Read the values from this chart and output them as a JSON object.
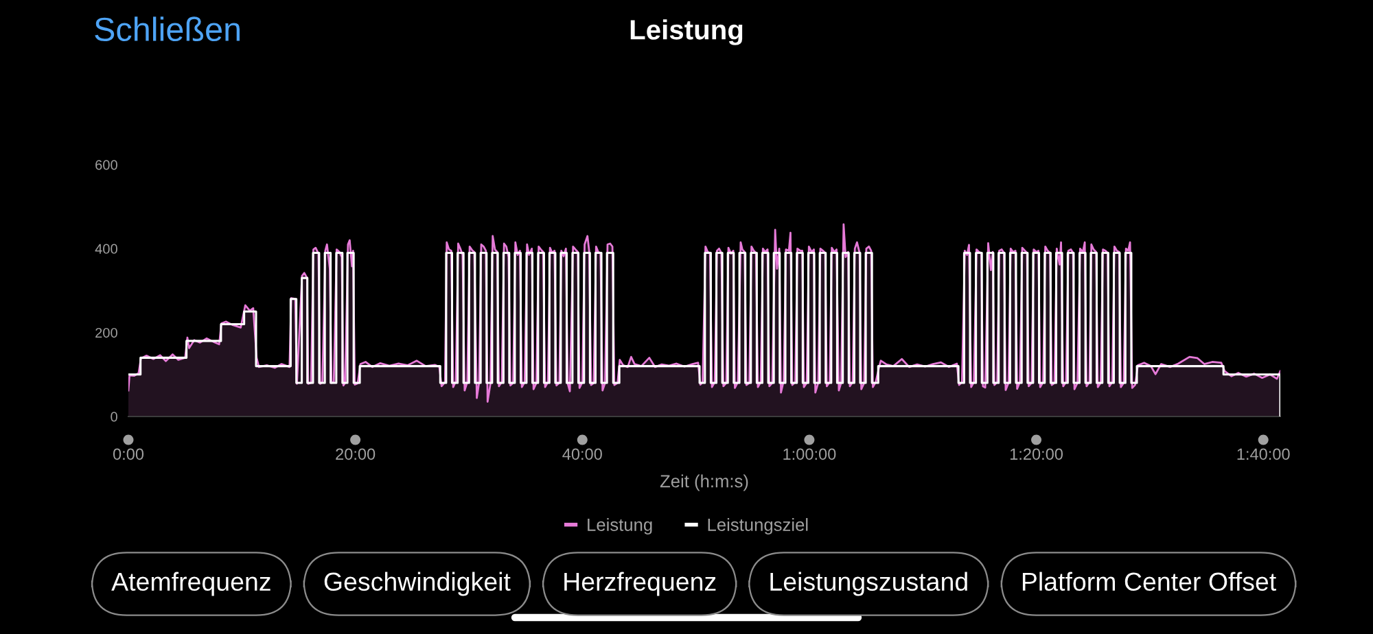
{
  "chart_data": {
    "type": "area",
    "title": "Leistung",
    "xlabel": "Zeit (h:m:s)",
    "xlim": [
      0,
      101.5
    ],
    "xticks": [
      {
        "value": 0,
        "label": "0:00"
      },
      {
        "value": 20,
        "label": "20:00"
      },
      {
        "value": 40,
        "label": "40:00"
      },
      {
        "value": 60,
        "label": "1:00:00"
      },
      {
        "value": 80,
        "label": "1:20:00"
      },
      {
        "value": 100,
        "label": "1:40:00"
      }
    ],
    "ylim": [
      0,
      600
    ],
    "yticks": [
      0,
      200,
      400,
      600
    ],
    "legend": "bottom",
    "annotations": [
      "Schließen",
      "Atemfrequenz",
      "Geschwindigkeit",
      "Herzfrequenz",
      "Leistungszustand",
      "Platform Center Offset"
    ],
    "series": [
      {
        "name": "Leistung",
        "color": "#e67ad8",
        "x": [
          0,
          0.1,
          0.5,
          0.9,
          1.1,
          1.6,
          2.2,
          2.8,
          3.3,
          3.9,
          4.4,
          5.0,
          5.2,
          5.35,
          5.8,
          6.3,
          6.9,
          7.5,
          8.0,
          8.2,
          8.6,
          9.2,
          9.9,
          10.3,
          10.7,
          11.0,
          11.3,
          11.5,
          12.2,
          12.9,
          13.5,
          14.2,
          14.35,
          14.7,
          14.85,
          15.3,
          15.5,
          15.75,
          15.85,
          16.1,
          16.3,
          16.5,
          16.75,
          16.9,
          17.1,
          17.35,
          17.5,
          17.75,
          17.9,
          18.1,
          18.35,
          18.6,
          18.8,
          18.95,
          19.1,
          19.35,
          19.5,
          19.7,
          19.8,
          19.95,
          20.2,
          20.45,
          20.9,
          21.5,
          22.2,
          23.0,
          23.8,
          24.6,
          25.4,
          26.2,
          27.0,
          27.4,
          27.6,
          27.9,
          28.05,
          28.25,
          28.45,
          28.62,
          28.85,
          29.06,
          29.25,
          29.45,
          29.63,
          29.86,
          30.07,
          30.3,
          30.48,
          30.7,
          30.9,
          31.09,
          31.3,
          31.5,
          31.65,
          31.9,
          32.1,
          32.3,
          32.5,
          32.65,
          32.9,
          33.1,
          33.3,
          33.5,
          33.66,
          33.9,
          34.1,
          34.3,
          34.5,
          34.67,
          34.92,
          35.13,
          35.3,
          35.55,
          35.7,
          35.95,
          36.15,
          36.35,
          36.55,
          36.72,
          36.97,
          37.15,
          37.35,
          37.55,
          37.72,
          37.97,
          38.15,
          38.35,
          38.55,
          38.72,
          38.9,
          39.18,
          39.4,
          39.6,
          39.75,
          40.0,
          40.2,
          40.45,
          40.6,
          40.77,
          41.0,
          41.21,
          41.4,
          41.6,
          41.78,
          42.0,
          42.22,
          42.45,
          42.65,
          42.82,
          43.1,
          43.3,
          43.6,
          44.0,
          44.3,
          44.6,
          45.2,
          45.9,
          46.4,
          47.0,
          47.6,
          48.3,
          49.0,
          49.7,
          50.2,
          50.4,
          50.6,
          50.85,
          51.05,
          51.25,
          51.42,
          51.67,
          51.86,
          52.05,
          52.25,
          52.43,
          52.68,
          52.87,
          53.1,
          53.3,
          53.44,
          53.7,
          53.95,
          54.1,
          54.3,
          54.46,
          54.71,
          54.9,
          55.1,
          55.3,
          55.47,
          55.72,
          55.91,
          56.1,
          56.32,
          56.48,
          56.73,
          56.99,
          57.15,
          57.35,
          57.5,
          57.74,
          57.94,
          58.2,
          58.34,
          58.5,
          58.76,
          58.95,
          59.2,
          59.38,
          59.52,
          59.77,
          59.96,
          60.2,
          60.4,
          60.53,
          60.78,
          60.97,
          61.2,
          61.4,
          61.54,
          61.79,
          61.98,
          62.2,
          62.4,
          62.6,
          62.8,
          63.02,
          63.2,
          63.42,
          63.57,
          63.82,
          64.01,
          64.2,
          64.43,
          64.58,
          64.83,
          65.02,
          65.25,
          65.45,
          65.6,
          65.85,
          66.15,
          66.3,
          66.8,
          67.4,
          68.15,
          68.8,
          69.5,
          70.2,
          70.9,
          71.6,
          72.3,
          73.0,
          73.2,
          73.45,
          73.7,
          73.9,
          74.07,
          74.26,
          74.5,
          74.73,
          74.95,
          75.15,
          75.3,
          75.5,
          75.76,
          76.0,
          76.16,
          76.31,
          76.55,
          76.73,
          76.95,
          77.15,
          77.3,
          77.55,
          77.74,
          77.95,
          78.16,
          78.31,
          78.55,
          78.76,
          79.0,
          79.18,
          79.33,
          79.58,
          79.77,
          80.0,
          80.19,
          80.34,
          80.6,
          80.79,
          81.0,
          81.21,
          81.36,
          81.6,
          81.8,
          82.05,
          82.18,
          82.37,
          82.62,
          82.82,
          83.05,
          83.24,
          83.36,
          83.62,
          83.86,
          84.1,
          84.27,
          84.43,
          84.68,
          84.85,
          85.05,
          85.27,
          85.42,
          85.67,
          85.87,
          86.1,
          86.29,
          86.44,
          86.69,
          86.88,
          87.1,
          87.3,
          87.45,
          87.7,
          87.9,
          88.1,
          88.26,
          88.45,
          88.7,
          88.95,
          89.5,
          90.1,
          90.5,
          91.0,
          91.8,
          92.5,
          93.5,
          94.2,
          94.8,
          95.5,
          96.3,
          96.6,
          97.2,
          97.8,
          98.5,
          99.2,
          99.9,
          100.6,
          101.2,
          101.5
        ],
        "values": [
          62,
          98,
          97,
          103,
          138,
          145,
          137,
          146,
          132,
          148,
          135,
          140,
          188,
          163,
          182,
          176,
          186,
          178,
          172,
          222,
          226,
          218,
          212,
          265,
          252,
          258,
          140,
          118,
          122,
          116,
          125,
          118,
          282,
          280,
          78,
          335,
          342,
          330,
          78,
          80,
          398,
          402,
          388,
          78,
          82,
          395,
          410,
          352,
          80,
          83,
          398,
          392,
          380,
          74,
          80,
          410,
          420,
          358,
          395,
          76,
          79,
          125,
          130,
          118,
          127,
          121,
          126,
          122,
          133,
          120,
          123,
          118,
          72,
          82,
          415,
          398,
          395,
          70,
          84,
          412,
          400,
          385,
          62,
          82,
          405,
          396,
          392,
          44,
          80,
          410,
          405,
          395,
          35,
          78,
          430,
          398,
          392,
          72,
          82,
          412,
          405,
          380,
          74,
          80,
          415,
          385,
          395,
          70,
          82,
          410,
          385,
          400,
          65,
          80,
          405,
          398,
          392,
          70,
          82,
          402,
          390,
          395,
          74,
          80,
          395,
          382,
          400,
          78,
          60,
          405,
          398,
          392,
          68,
          82,
          410,
          430,
          395,
          75,
          80,
          405,
          392,
          390,
          62,
          80,
          410,
          412,
          405,
          75,
          80,
          135,
          122,
          118,
          142,
          125,
          120,
          140,
          118,
          124,
          121,
          126,
          119,
          125,
          128,
          76,
          82,
          405,
          392,
          390,
          70,
          82,
          395,
          400,
          390,
          72,
          80,
          402,
          388,
          395,
          68,
          82,
          415,
          398,
          392,
          75,
          80,
          405,
          395,
          390,
          70,
          82,
          400,
          392,
          398,
          72,
          80,
          445,
          352,
          400,
          57,
          85,
          398,
          395,
          438,
          75,
          82,
          400,
          395,
          395,
          70,
          80,
          405,
          392,
          398,
          57,
          80,
          400,
          395,
          390,
          72,
          82,
          402,
          392,
          398,
          62,
          80,
          458,
          380,
          392,
          72,
          82,
          400,
          415,
          390,
          65,
          80,
          400,
          405,
          395,
          70,
          82,
          118,
          133,
          124,
          120,
          137,
          118,
          124,
          119,
          125,
          129,
          118,
          126,
          75,
          82,
          395,
          385,
          409,
          70,
          82,
          398,
          392,
          390,
          72,
          69,
          413,
          349,
          392,
          75,
          82,
          395,
          398,
          390,
          63,
          80,
          400,
          392,
          395,
          66,
          82,
          402,
          395,
          390,
          72,
          80,
          398,
          392,
          395,
          70,
          82,
          405,
          395,
          390,
          75,
          80,
          400,
          362,
          415,
          72,
          82,
          395,
          398,
          390,
          65,
          80,
          400,
          392,
          415,
          72,
          82,
          410,
          398,
          392,
          70,
          80,
          398,
          395,
          390,
          72,
          82,
          405,
          395,
          392,
          70,
          80,
          400,
          395,
          415,
          68,
          75,
          122,
          128,
          120,
          101,
          125,
          118,
          126,
          142,
          139,
          125,
          130,
          128,
          108,
          96,
          104,
          95,
          102,
          92,
          100,
          90,
          108
        ]
      },
      {
        "name": "Leistungsziel",
        "type": "step",
        "color": "#ffffff",
        "x": [
          0,
          1.07,
          5.12,
          8.16,
          10.2,
          11.25,
          14.3,
          14.8,
          15.28,
          15.77,
          16.27,
          16.81,
          17.31,
          17.82,
          18.32,
          18.86,
          19.3,
          19.85,
          20.39,
          27.48,
          28.0,
          28.52,
          29.01,
          29.53,
          30.02,
          30.54,
          31.04,
          31.56,
          32.05,
          32.55,
          33.05,
          33.56,
          34.05,
          34.57,
          35.08,
          35.6,
          36.1,
          36.62,
          37.1,
          37.62,
          38.1,
          38.62,
          39.13,
          39.65,
          40.15,
          40.67,
          41.16,
          41.68,
          42.17,
          42.72,
          43.26,
          50.33,
          50.8,
          51.32,
          51.81,
          52.33,
          52.82,
          53.34,
          53.84,
          54.36,
          54.85,
          55.37,
          55.86,
          56.38,
          56.87,
          57.39,
          57.89,
          58.41,
          58.9,
          59.42,
          59.91,
          60.43,
          60.92,
          61.44,
          61.93,
          62.45,
          62.95,
          63.47,
          63.96,
          64.48,
          64.97,
          65.52,
          66.07,
          73.14,
          73.64,
          74.16,
          74.68,
          75.2,
          75.69,
          76.21,
          76.68,
          77.2,
          77.69,
          78.21,
          78.71,
          79.23,
          79.72,
          80.24,
          80.74,
          81.26,
          81.75,
          82.27,
          82.77,
          83.29,
          83.81,
          84.33,
          84.8,
          85.32,
          85.82,
          86.34,
          86.83,
          87.35,
          87.85,
          88.37,
          88.86,
          96.49,
          101.5
        ],
        "values": [
          100,
          140,
          180,
          220,
          250,
          120,
          280,
          80,
          330,
          80,
          390,
          80,
          390,
          80,
          390,
          80,
          390,
          80,
          120,
          80,
          390,
          80,
          390,
          80,
          390,
          80,
          390,
          80,
          390,
          80,
          390,
          80,
          390,
          80,
          390,
          80,
          390,
          80,
          390,
          80,
          390,
          80,
          390,
          80,
          390,
          80,
          390,
          80,
          390,
          80,
          120,
          80,
          390,
          80,
          390,
          80,
          390,
          80,
          390,
          80,
          390,
          80,
          390,
          80,
          390,
          80,
          390,
          80,
          390,
          80,
          390,
          80,
          390,
          80,
          390,
          80,
          390,
          80,
          390,
          80,
          390,
          80,
          120,
          80,
          390,
          80,
          390,
          80,
          390,
          80,
          390,
          80,
          390,
          80,
          390,
          80,
          390,
          80,
          390,
          80,
          390,
          80,
          390,
          80,
          390,
          80,
          390,
          80,
          390,
          80,
          390,
          80,
          390,
          80,
          120,
          100,
          0
        ]
      }
    ]
  }
}
